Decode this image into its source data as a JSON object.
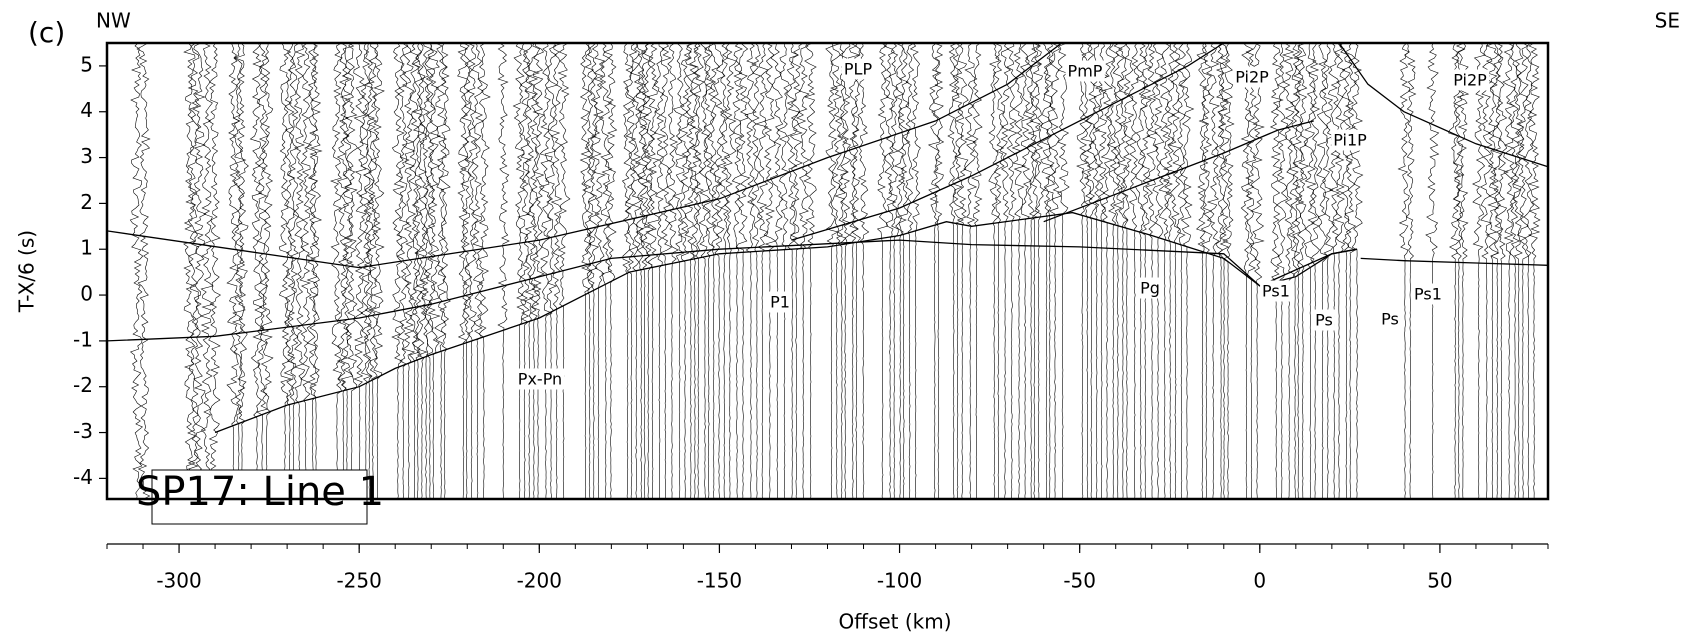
{
  "panel_label": "(c)",
  "chart_data": {
    "type": "record-section",
    "title": "SP17: Line 1",
    "direction_left": "NW",
    "direction_right": "SE",
    "xlabel": "Offset (km)",
    "ylabel": "T-X/6 (s)",
    "xlim": [
      -320,
      80
    ],
    "ylim": [
      -4.45,
      5.5
    ],
    "xticks": [
      -300,
      -250,
      -200,
      -150,
      -100,
      -50,
      0,
      50
    ],
    "yticks": [
      5,
      4,
      3,
      2,
      1,
      0,
      -1,
      -2,
      -3,
      -4
    ],
    "curve_color": "#000000",
    "series": [
      {
        "x": [
          -290,
          -270,
          -250,
          -240,
          -230,
          -200,
          -175,
          -150,
          -120,
          -100,
          -87,
          -80,
          -52,
          -30,
          -10,
          0,
          10,
          20,
          27
        ],
        "values": [
          -3,
          -2.4,
          -2,
          -1.6,
          -1.3,
          -0.5,
          0.5,
          0.9,
          1.05,
          1.3,
          1.6,
          1.5,
          1.8,
          1.3,
          0.8,
          0.2,
          0.4,
          0.9,
          1.0
        ]
      },
      {
        "x": [
          -320,
          -290,
          -250,
          -230,
          -200,
          -180,
          -150,
          -100,
          -80,
          -50,
          -10,
          0,
          20,
          27
        ],
        "values": [
          -1,
          -0.9,
          -0.5,
          -0.2,
          0.4,
          0.8,
          1.0,
          1.2,
          1.1,
          1.05,
          0.9,
          0.2,
          0.9,
          1.0
        ]
      },
      {
        "x": [
          -320,
          -250,
          -200,
          -150,
          -120,
          -90,
          -70,
          -55
        ],
        "values": [
          1.4,
          0.6,
          1.2,
          2.1,
          3.0,
          3.8,
          4.6,
          5.5
        ]
      },
      {
        "x": [
          -130,
          -100,
          -80,
          -60,
          -40,
          -20,
          -10
        ],
        "values": [
          1.2,
          1.9,
          2.6,
          3.4,
          4.2,
          5.0,
          5.5
        ]
      },
      {
        "x": [
          -60,
          -30,
          -10,
          5,
          15
        ],
        "values": [
          1.6,
          2.5,
          3.1,
          3.6,
          3.8
        ]
      },
      {
        "x": [
          28,
          40,
          60,
          80
        ],
        "values": [
          0.8,
          0.75,
          0.7,
          0.65
        ]
      },
      {
        "x": [
          22,
          30,
          40,
          60,
          80
        ],
        "values": [
          5.5,
          4.6,
          4.0,
          3.3,
          2.8
        ]
      }
    ],
    "annotations": [
      "PLP",
      "PmP",
      "Pi2P",
      "Pi2P",
      "Pi1P",
      "P1",
      "Pg",
      "Ps1",
      "Ps",
      "Ps",
      "Ps1",
      "Px-Pn"
    ]
  }
}
